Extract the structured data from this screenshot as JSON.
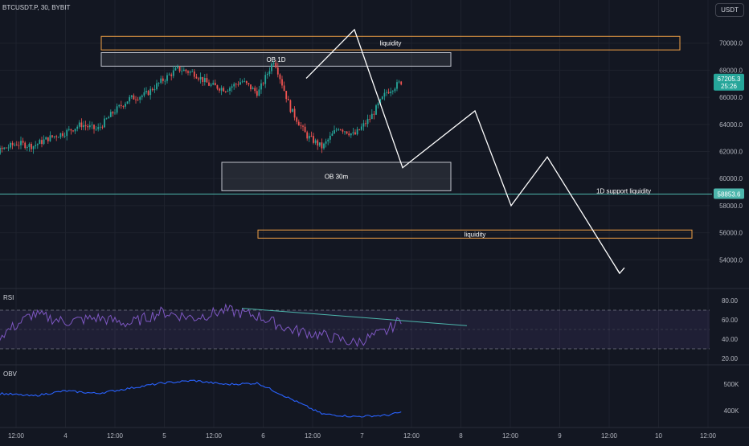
{
  "header": {
    "symbol": "BTCUSDT.P, 30, BYBIT",
    "currency": "USDT"
  },
  "colors": {
    "bg": "#131722",
    "up": "#26a69a",
    "down": "#ef5350",
    "grid": "#1e222d",
    "text": "#b2b5be",
    "zone": "#f0a045",
    "zone_fill": "rgba(255,255,255,0.08)",
    "rsi": "#7e57c2",
    "obv": "#2962ff",
    "support": "#4db6ac",
    "arrow": "#ffffff"
  },
  "chart_data": [
    {
      "type": "candlestick",
      "x_labels": [
        "12:00",
        "4",
        "12:00",
        "5",
        "12:00",
        "6",
        "12:00",
        "7",
        "12:00",
        "8",
        "12:00",
        "9",
        "12:00",
        "10",
        "12:00"
      ],
      "y_ticks": [
        54000,
        56000,
        58000,
        60000,
        62000,
        64000,
        66000,
        68000,
        70000
      ],
      "ylim": [
        52000,
        72000
      ],
      "current_price": {
        "value": "67205.3",
        "countdown": "25:26"
      },
      "support_line": {
        "value": 58853.6,
        "label": "58853.6",
        "text": "1D support liquidity"
      },
      "zones": [
        {
          "label": "liquidity",
          "x_from": "04 09:00",
          "x_to": "10 09:00",
          "y_from": 69500,
          "y_to": 70500,
          "style": "outline"
        },
        {
          "label": "OB 1D",
          "x_from": "04 09:00",
          "x_to": "08 00:00",
          "y_from": 68300,
          "y_to": 69300,
          "style": "filled"
        },
        {
          "label": "OB 30m",
          "x_from": "05 15:00",
          "x_to": "08 00:00",
          "y_from": 59100,
          "y_to": 61200,
          "style": "filled"
        },
        {
          "label": "liquidity",
          "x_from": "06 00:00",
          "x_to": "10 12:00",
          "y_from": 55600,
          "y_to": 56200,
          "style": "outline"
        }
      ],
      "projection": [
        {
          "x": "06 12:00",
          "y": 67400
        },
        {
          "x": "07 00:00",
          "y": 71000
        },
        {
          "x": "07 12:00",
          "y": 60800
        },
        {
          "x": "08 06:00",
          "y": 65000
        },
        {
          "x": "08 15:00",
          "y": 58000
        },
        {
          "x": "09 00:00",
          "y": 61600
        },
        {
          "x": "09 18:00",
          "y": 53000
        }
      ],
      "ohlc_path": [
        {
          "x": "03 00:00",
          "y": 62300
        },
        {
          "x": "03 04:00",
          "y": 61700
        },
        {
          "x": "03 08:00",
          "y": 62100
        },
        {
          "x": "03 12:00",
          "y": 62600
        },
        {
          "x": "03 16:00",
          "y": 62400
        },
        {
          "x": "03 20:00",
          "y": 63000
        },
        {
          "x": "04 00:00",
          "y": 63400
        },
        {
          "x": "04 04:00",
          "y": 64000
        },
        {
          "x": "04 08:00",
          "y": 63600
        },
        {
          "x": "04 12:00",
          "y": 64900
        },
        {
          "x": "04 16:00",
          "y": 65900
        },
        {
          "x": "04 20:00",
          "y": 66200
        },
        {
          "x": "05 00:00",
          "y": 67200
        },
        {
          "x": "05 04:00",
          "y": 68100
        },
        {
          "x": "05 08:00",
          "y": 67800
        },
        {
          "x": "05 12:00",
          "y": 66900
        },
        {
          "x": "05 16:00",
          "y": 66600
        },
        {
          "x": "05 20:00",
          "y": 67200
        },
        {
          "x": "06 00:00",
          "y": 66300
        },
        {
          "x": "06 04:00",
          "y": 68800
        },
        {
          "x": "06 08:00",
          "y": 65200
        },
        {
          "x": "06 12:00",
          "y": 63200
        },
        {
          "x": "06 16:00",
          "y": 62300
        },
        {
          "x": "06 20:00",
          "y": 63800
        },
        {
          "x": "07 00:00",
          "y": 63200
        },
        {
          "x": "07 04:00",
          "y": 64500
        },
        {
          "x": "07 08:00",
          "y": 66400
        },
        {
          "x": "07 12:00",
          "y": 67205
        }
      ],
      "grid": "on"
    },
    {
      "type": "line",
      "name": "RSI",
      "y_ticks": [
        20,
        40,
        60,
        80
      ],
      "ylim": [
        15,
        90
      ],
      "band": [
        30,
        70
      ],
      "mid": 50,
      "series": [
        {
          "x": "03 00:00",
          "y": 52
        },
        {
          "x": "03 08:00",
          "y": 44
        },
        {
          "x": "03 16:00",
          "y": 66
        },
        {
          "x": "04 00:00",
          "y": 58
        },
        {
          "x": "04 08:00",
          "y": 62
        },
        {
          "x": "04 16:00",
          "y": 56
        },
        {
          "x": "05 00:00",
          "y": 68
        },
        {
          "x": "05 08:00",
          "y": 62
        },
        {
          "x": "05 16:00",
          "y": 70
        },
        {
          "x": "06 00:00",
          "y": 64
        },
        {
          "x": "06 08:00",
          "y": 50
        },
        {
          "x": "06 16:00",
          "y": 44
        },
        {
          "x": "07 00:00",
          "y": 36
        },
        {
          "x": "07 08:00",
          "y": 48
        },
        {
          "x": "07 12:00",
          "y": 62
        }
      ],
      "trendline": [
        {
          "x": "05 20:00",
          "y": 72
        },
        {
          "x": "08 04:00",
          "y": 54
        }
      ]
    },
    {
      "type": "line",
      "name": "OBV",
      "y_ticks": [
        "500K",
        "400K"
      ],
      "series": [
        {
          "x": "03 00:00",
          "y": 440
        },
        {
          "x": "03 08:00",
          "y": 470
        },
        {
          "x": "03 16:00",
          "y": 460
        },
        {
          "x": "04 00:00",
          "y": 480
        },
        {
          "x": "04 08:00",
          "y": 470
        },
        {
          "x": "04 16:00",
          "y": 490
        },
        {
          "x": "05 00:00",
          "y": 510
        },
        {
          "x": "05 08:00",
          "y": 520
        },
        {
          "x": "05 16:00",
          "y": 505
        },
        {
          "x": "06 00:00",
          "y": 510
        },
        {
          "x": "06 08:00",
          "y": 450
        },
        {
          "x": "06 16:00",
          "y": 390
        },
        {
          "x": "07 00:00",
          "y": 380
        },
        {
          "x": "07 08:00",
          "y": 385
        },
        {
          "x": "07 12:00",
          "y": 398
        }
      ]
    }
  ]
}
